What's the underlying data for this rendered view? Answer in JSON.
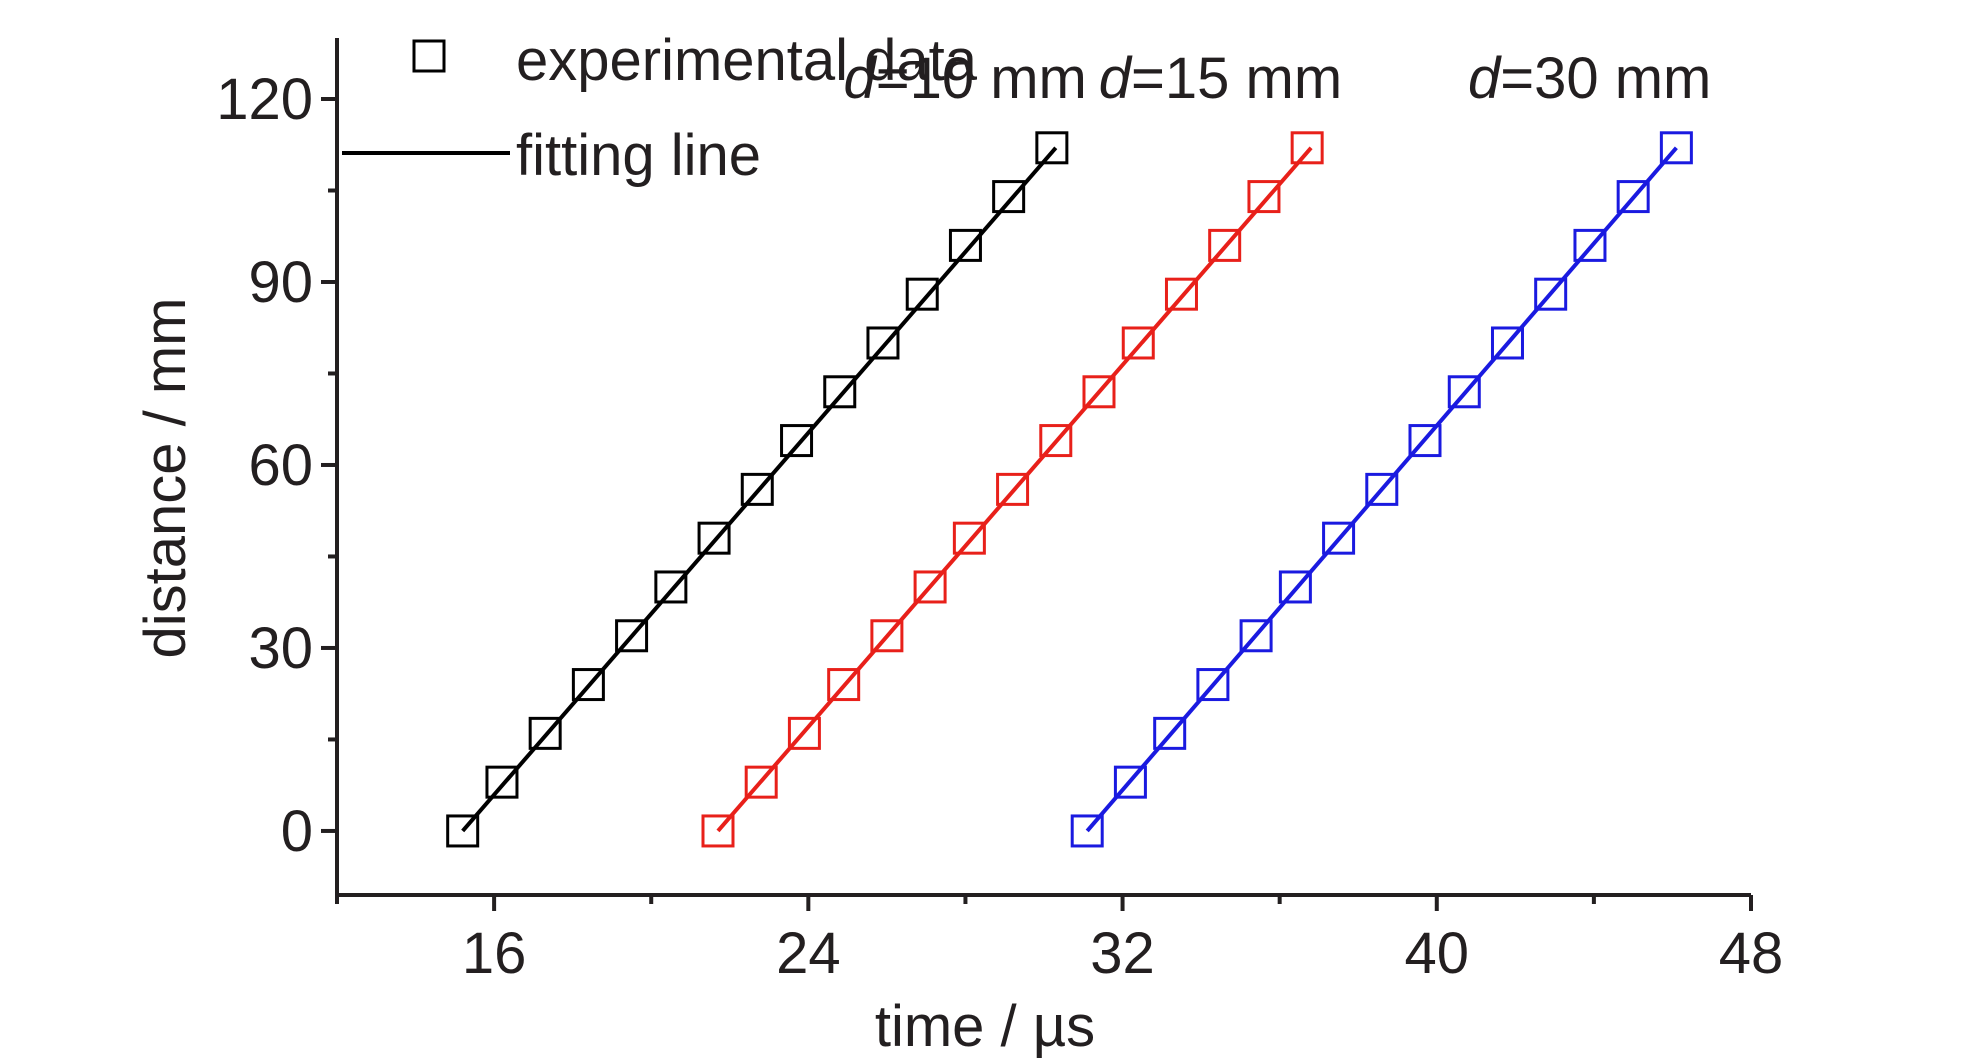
{
  "chart_data": {
    "type": "scatter",
    "xlabel": "time / µs",
    "ylabel": "distance / mm",
    "xlim": [
      12,
      48
    ],
    "ylim": [
      -10.5,
      130
    ],
    "xticks": [
      16,
      24,
      32,
      40,
      48
    ],
    "yticks": [
      0,
      30,
      60,
      90,
      120
    ],
    "x_minor_step": 4,
    "y_minor_step": 15,
    "legend": {
      "position": "top-left",
      "marker_label": "experimental data",
      "line_label": "fitting line"
    },
    "series": [
      {
        "name": "d=10 mm",
        "label_prefix": "d",
        "label_suffix": "=10 mm",
        "color": "#000000",
        "x": [
          15.2,
          16.2,
          17.3,
          18.4,
          19.5,
          20.5,
          21.6,
          22.7,
          23.7,
          24.8,
          25.9,
          26.9,
          28.0,
          29.1,
          30.2
        ],
        "y": [
          0,
          8,
          16,
          24,
          32,
          40,
          48,
          56,
          64,
          72,
          80,
          88,
          96,
          104,
          112
        ],
        "fit": {
          "x": [
            15.2,
            30.3
          ],
          "y": [
            0,
            112
          ]
        }
      },
      {
        "name": "d=15 mm",
        "label_prefix": "d",
        "label_suffix": "=15 mm",
        "color": "#e8201a",
        "x": [
          21.7,
          22.8,
          23.9,
          24.9,
          26.0,
          27.1,
          28.1,
          29.2,
          30.3,
          31.4,
          32.4,
          33.5,
          34.6,
          35.6,
          36.7
        ],
        "y": [
          0,
          8,
          16,
          24,
          32,
          40,
          48,
          56,
          64,
          72,
          80,
          88,
          96,
          104,
          112
        ],
        "fit": {
          "x": [
            21.7,
            36.8
          ],
          "y": [
            0,
            112
          ]
        }
      },
      {
        "name": "d=30 mm",
        "label_prefix": "d",
        "label_suffix": "=30 mm",
        "color": "#1a1ae0",
        "x": [
          31.1,
          32.2,
          33.2,
          34.3,
          35.4,
          36.4,
          37.5,
          38.6,
          39.7,
          40.7,
          41.8,
          42.9,
          43.9,
          45.0,
          46.1
        ],
        "y": [
          0,
          8,
          16,
          24,
          32,
          40,
          48,
          56,
          64,
          72,
          80,
          88,
          96,
          104,
          112
        ],
        "fit": {
          "x": [
            31.1,
            46.1
          ],
          "y": [
            0,
            112
          ]
        }
      }
    ]
  }
}
